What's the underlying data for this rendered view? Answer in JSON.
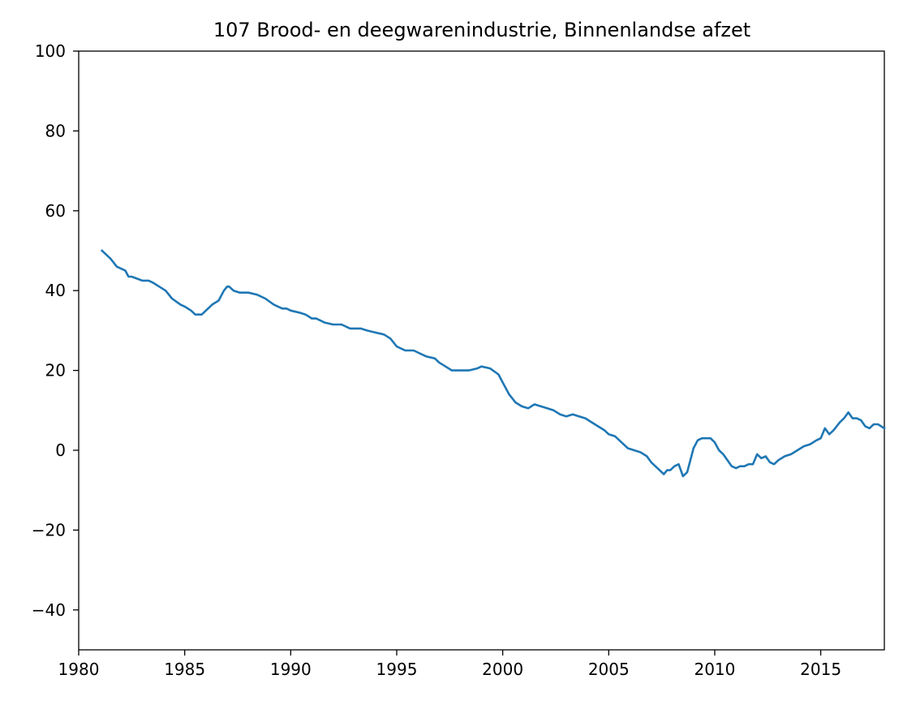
{
  "chart_data": {
    "type": "line",
    "title": "107 Brood- en deegwarenindustrie, Binnenlandse afzet",
    "xlabel": "",
    "ylabel": "",
    "xlim": [
      1980,
      2018
    ],
    "ylim": [
      -50,
      100
    ],
    "xticks": [
      1980,
      1985,
      1990,
      1995,
      2000,
      2005,
      2010,
      2015
    ],
    "xtick_labels": [
      "1980",
      "1985",
      "1990",
      "1995",
      "2000",
      "2005",
      "2010",
      "2015"
    ],
    "yticks": [
      -40,
      -20,
      0,
      20,
      40,
      60,
      80,
      100
    ],
    "ytick_labels": [
      "−40",
      "−20",
      "0",
      "20",
      "40",
      "60",
      "80",
      "100"
    ],
    "grid": false,
    "series": [
      {
        "color": "#1f77b4",
        "x": [
          1981.1,
          1981.5,
          1981.8,
          1982.2,
          1982.35,
          1982.5,
          1983.0,
          1983.3,
          1983.5,
          1983.8,
          1984.1,
          1984.4,
          1984.8,
          1985.0,
          1985.3,
          1985.5,
          1985.8,
          1986.0,
          1986.3,
          1986.6,
          1986.85,
          1987.0,
          1987.1,
          1987.3,
          1987.6,
          1988.0,
          1988.4,
          1988.8,
          1989.2,
          1989.6,
          1989.8,
          1990.0,
          1990.4,
          1990.7,
          1991.0,
          1991.2,
          1991.6,
          1992.0,
          1992.4,
          1992.8,
          1993.0,
          1993.3,
          1993.6,
          1994.0,
          1994.4,
          1994.7,
          1995.0,
          1995.4,
          1995.8,
          1996.0,
          1996.4,
          1996.8,
          1997.0,
          1997.3,
          1997.6,
          1998.0,
          1998.4,
          1998.8,
          1999.0,
          1999.4,
          1999.8,
          2000.0,
          2000.3,
          2000.6,
          2000.9,
          2001.2,
          2001.5,
          2001.8,
          2002.1,
          2002.4,
          2002.7,
          2003.0,
          2003.3,
          2003.6,
          2003.9,
          2004.2,
          2004.5,
          2004.8,
          2005.0,
          2005.3,
          2005.6,
          2005.9,
          2006.2,
          2006.5,
          2006.8,
          2007.0,
          2007.2,
          2007.4,
          2007.6,
          2007.75,
          2007.9,
          2008.1,
          2008.3,
          2008.5,
          2008.7,
          2008.9,
          2009.0,
          2009.2,
          2009.4,
          2009.6,
          2009.8,
          2010.0,
          2010.2,
          2010.4,
          2010.6,
          2010.8,
          2011.0,
          2011.2,
          2011.4,
          2011.6,
          2011.8,
          2012.0,
          2012.2,
          2012.4,
          2012.6,
          2012.8,
          2013.0,
          2013.3,
          2013.6,
          2013.9,
          2014.2,
          2014.5,
          2014.8,
          2015.0,
          2015.2,
          2015.4,
          2015.6,
          2015.9,
          2016.1,
          2016.3,
          2016.5,
          2016.7,
          2016.9,
          2017.1,
          2017.3,
          2017.5,
          2017.7,
          2018.0
        ],
        "y": [
          50.0,
          48.0,
          46.0,
          45.0,
          43.5,
          43.5,
          42.5,
          42.5,
          42.0,
          41.0,
          40.0,
          38.0,
          36.5,
          36.0,
          35.0,
          34.0,
          34.0,
          35.0,
          36.5,
          37.5,
          40.0,
          41.0,
          41.0,
          40.0,
          39.5,
          39.5,
          39.0,
          38.0,
          36.5,
          35.5,
          35.5,
          35.0,
          34.5,
          34.0,
          33.0,
          33.0,
          32.0,
          31.5,
          31.5,
          30.5,
          30.5,
          30.5,
          30.0,
          29.5,
          29.0,
          28.0,
          26.0,
          25.0,
          25.0,
          24.5,
          23.5,
          23.0,
          22.0,
          21.0,
          20.0,
          20.0,
          20.0,
          20.5,
          21.0,
          20.5,
          19.0,
          17.0,
          14.0,
          12.0,
          11.0,
          10.5,
          11.5,
          11.0,
          10.5,
          10.0,
          9.0,
          8.5,
          9.0,
          8.5,
          8.0,
          7.0,
          6.0,
          5.0,
          4.0,
          3.5,
          2.0,
          0.5,
          0.0,
          -0.5,
          -1.5,
          -3.0,
          -4.0,
          -5.0,
          -6.0,
          -5.0,
          -5.0,
          -4.0,
          -3.5,
          -6.5,
          -5.5,
          -1.5,
          0.5,
          2.5,
          3.0,
          3.0,
          3.0,
          2.0,
          0.0,
          -1.0,
          -2.5,
          -4.0,
          -4.5,
          -4.0,
          -4.0,
          -3.5,
          -3.5,
          -1.0,
          -2.0,
          -1.5,
          -3.0,
          -3.5,
          -2.5,
          -1.5,
          -1.0,
          0.0,
          1.0,
          1.5,
          2.5,
          3.0,
          5.5,
          4.0,
          5.0,
          7.0,
          8.0,
          9.5,
          8.0,
          8.0,
          7.5,
          6.0,
          5.5,
          6.5,
          6.5,
          5.5
        ]
      }
    ]
  }
}
